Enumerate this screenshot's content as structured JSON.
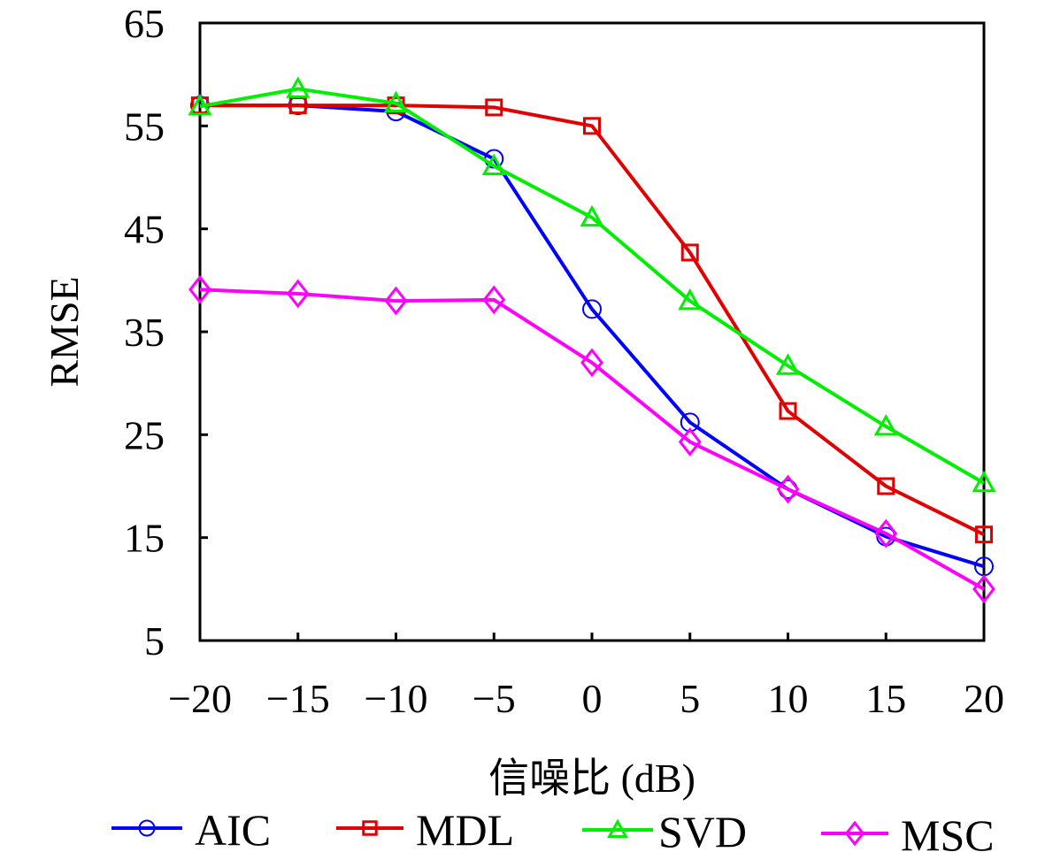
{
  "chart_data": {
    "type": "line",
    "title": "",
    "xlabel": "信噪比 (dB)",
    "ylabel": "RMSE",
    "x": [
      -20,
      -15,
      -10,
      -5,
      0,
      5,
      10,
      15,
      20
    ],
    "xlim": [
      -20,
      20
    ],
    "ylim": [
      5,
      65
    ],
    "xticks": [
      -20,
      -15,
      -10,
      -5,
      0,
      5,
      10,
      15,
      20
    ],
    "xtick_labels": [
      "−20",
      "−15",
      "−10",
      "−5",
      "0",
      "5",
      "10",
      "15",
      "20"
    ],
    "yticks": [
      5,
      15,
      25,
      35,
      45,
      55,
      65
    ],
    "ytick_labels": [
      "5",
      "15",
      "25",
      "35",
      "45",
      "55",
      "65"
    ],
    "grid": false,
    "legend_position": "bottom",
    "series": [
      {
        "name": "AIC",
        "color": "#0000ff",
        "marker": "circle",
        "values": [
          57.0,
          57.0,
          56.4,
          51.8,
          37.2,
          26.2,
          19.7,
          15.1,
          12.2
        ]
      },
      {
        "name": "MDL",
        "color": "#e00000",
        "marker": "square",
        "values": [
          57.0,
          57.0,
          57.0,
          56.8,
          55.0,
          42.7,
          27.3,
          20.0,
          15.3
        ]
      },
      {
        "name": "SVD",
        "color": "#00ee00",
        "marker": "triangle",
        "values": [
          56.9,
          58.6,
          57.2,
          51.1,
          46.1,
          38.0,
          31.7,
          25.8,
          20.3
        ]
      },
      {
        "name": "MSC",
        "color": "#ff00ff",
        "marker": "diamond",
        "values": [
          39.1,
          38.7,
          38.0,
          38.1,
          32.0,
          24.3,
          19.7,
          15.4,
          10.0
        ]
      }
    ]
  }
}
